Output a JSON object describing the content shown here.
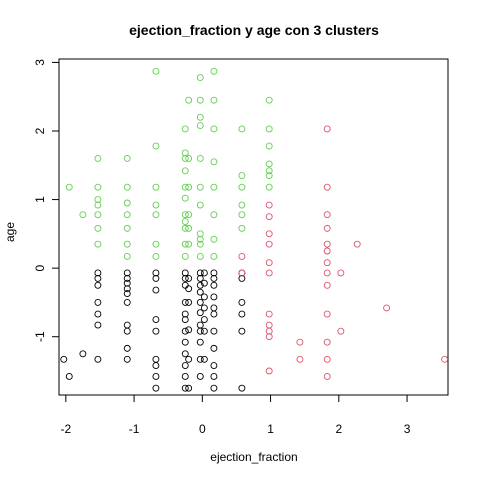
{
  "chart_data": {
    "type": "scatter",
    "title": "ejection_fraction  y  age con  3  clusters",
    "xlabel": "ejection_fraction",
    "ylabel": "age",
    "xlim": [
      -2.1,
      3.6
    ],
    "ylim": [
      -1.85,
      3.05
    ],
    "xticks": [
      -2,
      -1,
      0,
      1,
      2,
      3
    ],
    "yticks": [
      -1,
      0,
      1,
      2,
      3
    ],
    "grid": false,
    "legend": "none",
    "series": [
      {
        "color": "#000000",
        "points": [
          [
            -2.03,
            -1.33
          ],
          [
            -1.95,
            -1.58
          ],
          [
            -1.75,
            -1.25
          ],
          [
            -1.53,
            -0.07
          ],
          [
            -1.53,
            -0.15
          ],
          [
            -1.53,
            -0.25
          ],
          [
            -1.53,
            -0.5
          ],
          [
            -1.53,
            -0.67
          ],
          [
            -1.53,
            -0.83
          ],
          [
            -1.53,
            -1.33
          ],
          [
            -1.1,
            -0.07
          ],
          [
            -1.1,
            -0.15
          ],
          [
            -1.1,
            -0.22
          ],
          [
            -1.1,
            -0.3
          ],
          [
            -1.1,
            -0.37
          ],
          [
            -1.1,
            -0.5
          ],
          [
            -1.1,
            -0.83
          ],
          [
            -1.1,
            -0.92
          ],
          [
            -1.1,
            -1.17
          ],
          [
            -1.1,
            -1.33
          ],
          [
            -0.68,
            -0.07
          ],
          [
            -0.68,
            -0.15
          ],
          [
            -0.68,
            -0.32
          ],
          [
            -0.68,
            -0.75
          ],
          [
            -0.68,
            -0.92
          ],
          [
            -0.68,
            -1.33
          ],
          [
            -0.68,
            -1.42
          ],
          [
            -0.68,
            -1.58
          ],
          [
            -0.68,
            -1.75
          ],
          [
            -0.25,
            -0.07
          ],
          [
            -0.25,
            -0.15
          ],
          [
            -0.25,
            -0.25
          ],
          [
            -0.25,
            -0.5
          ],
          [
            -0.25,
            -0.67
          ],
          [
            -0.25,
            -0.75
          ],
          [
            -0.25,
            -0.92
          ],
          [
            -0.25,
            -1.08
          ],
          [
            -0.25,
            -1.25
          ],
          [
            -0.25,
            -1.42
          ],
          [
            -0.25,
            -1.58
          ],
          [
            -0.25,
            -1.75
          ],
          [
            -0.2,
            -0.15
          ],
          [
            -0.2,
            -0.3
          ],
          [
            -0.2,
            -0.5
          ],
          [
            -0.2,
            -0.9
          ],
          [
            -0.2,
            -1.33
          ],
          [
            -0.2,
            -1.75
          ],
          [
            -0.03,
            -0.07
          ],
          [
            -0.03,
            -0.15
          ],
          [
            -0.03,
            -0.25
          ],
          [
            -0.03,
            -0.35
          ],
          [
            -0.03,
            -0.5
          ],
          [
            -0.03,
            -0.65
          ],
          [
            -0.03,
            -0.83
          ],
          [
            -0.03,
            -0.92
          ],
          [
            -0.03,
            -1.08
          ],
          [
            -0.03,
            -1.33
          ],
          [
            -0.03,
            -1.58
          ],
          [
            0.03,
            -0.07
          ],
          [
            0.03,
            -0.22
          ],
          [
            0.03,
            -0.42
          ],
          [
            0.03,
            -0.58
          ],
          [
            0.03,
            -0.75
          ],
          [
            0.03,
            -0.92
          ],
          [
            0.03,
            -1.33
          ],
          [
            0.17,
            -0.07
          ],
          [
            0.17,
            -0.15
          ],
          [
            0.17,
            -0.25
          ],
          [
            0.17,
            -0.42
          ],
          [
            0.17,
            -0.58
          ],
          [
            0.17,
            -0.67
          ],
          [
            0.17,
            -0.92
          ],
          [
            0.17,
            -1.17
          ],
          [
            0.17,
            -1.42
          ],
          [
            0.17,
            -1.58
          ],
          [
            0.17,
            -1.75
          ],
          [
            0.58,
            -0.07
          ],
          [
            0.58,
            -0.15
          ],
          [
            0.58,
            -0.5
          ],
          [
            0.58,
            -0.67
          ],
          [
            0.58,
            -0.92
          ],
          [
            0.58,
            -1.75
          ]
        ]
      },
      {
        "color": "#DF536B",
        "points": [
          [
            0.58,
            0.17
          ],
          [
            0.58,
            -0.07
          ],
          [
            0.98,
            0.92
          ],
          [
            0.98,
            0.75
          ],
          [
            0.98,
            0.5
          ],
          [
            0.98,
            0.35
          ],
          [
            0.98,
            0.08
          ],
          [
            0.98,
            -0.07
          ],
          [
            0.98,
            -0.67
          ],
          [
            0.98,
            -0.83
          ],
          [
            0.98,
            -0.92
          ],
          [
            0.98,
            -1.0
          ],
          [
            0.98,
            -1.5
          ],
          [
            1.43,
            -1.08
          ],
          [
            1.43,
            -1.33
          ],
          [
            1.83,
            2.03
          ],
          [
            1.83,
            1.18
          ],
          [
            1.83,
            0.78
          ],
          [
            1.83,
            0.58
          ],
          [
            1.83,
            0.35
          ],
          [
            1.83,
            0.25
          ],
          [
            1.83,
            0.08
          ],
          [
            1.83,
            -0.07
          ],
          [
            1.83,
            -0.25
          ],
          [
            1.83,
            -0.67
          ],
          [
            1.83,
            -1.08
          ],
          [
            1.83,
            -1.33
          ],
          [
            1.83,
            -1.58
          ],
          [
            2.03,
            -0.07
          ],
          [
            2.03,
            -0.92
          ],
          [
            2.27,
            0.35
          ],
          [
            2.7,
            -0.58
          ],
          [
            3.55,
            -1.33
          ]
        ]
      },
      {
        "color": "#61D04F",
        "points": [
          [
            -1.95,
            1.18
          ],
          [
            -1.75,
            0.78
          ],
          [
            -1.53,
            1.6
          ],
          [
            -1.53,
            1.18
          ],
          [
            -1.53,
            1.0
          ],
          [
            -1.53,
            0.92
          ],
          [
            -1.53,
            0.78
          ],
          [
            -1.53,
            0.58
          ],
          [
            -1.53,
            0.35
          ],
          [
            -1.1,
            1.6
          ],
          [
            -1.1,
            1.18
          ],
          [
            -1.1,
            0.95
          ],
          [
            -1.1,
            0.78
          ],
          [
            -1.1,
            0.58
          ],
          [
            -1.1,
            0.35
          ],
          [
            -1.1,
            0.17
          ],
          [
            -0.68,
            2.87
          ],
          [
            -0.68,
            1.78
          ],
          [
            -0.68,
            1.18
          ],
          [
            -0.68,
            0.92
          ],
          [
            -0.68,
            0.78
          ],
          [
            -0.68,
            0.35
          ],
          [
            -0.68,
            0.17
          ],
          [
            -0.25,
            2.03
          ],
          [
            -0.25,
            1.68
          ],
          [
            -0.25,
            1.6
          ],
          [
            -0.25,
            1.42
          ],
          [
            -0.25,
            1.18
          ],
          [
            -0.25,
            1.02
          ],
          [
            -0.25,
            0.78
          ],
          [
            -0.25,
            0.68
          ],
          [
            -0.25,
            0.58
          ],
          [
            -0.25,
            0.35
          ],
          [
            -0.25,
            0.17
          ],
          [
            -0.2,
            2.45
          ],
          [
            -0.2,
            1.6
          ],
          [
            -0.2,
            1.18
          ],
          [
            -0.2,
            0.78
          ],
          [
            -0.2,
            0.58
          ],
          [
            -0.2,
            0.35
          ],
          [
            -0.03,
            2.78
          ],
          [
            -0.03,
            2.45
          ],
          [
            -0.03,
            2.2
          ],
          [
            -0.03,
            2.08
          ],
          [
            -0.03,
            1.6
          ],
          [
            -0.03,
            1.18
          ],
          [
            -0.03,
            0.92
          ],
          [
            -0.03,
            0.5
          ],
          [
            -0.03,
            0.42
          ],
          [
            -0.03,
            0.35
          ],
          [
            -0.03,
            0.17
          ],
          [
            0.17,
            2.87
          ],
          [
            0.17,
            2.45
          ],
          [
            0.17,
            2.03
          ],
          [
            0.17,
            1.55
          ],
          [
            0.17,
            1.18
          ],
          [
            0.17,
            0.78
          ],
          [
            0.17,
            0.42
          ],
          [
            0.17,
            0.17
          ],
          [
            0.58,
            2.03
          ],
          [
            0.58,
            1.35
          ],
          [
            0.58,
            1.18
          ],
          [
            0.58,
            0.92
          ],
          [
            0.58,
            0.78
          ],
          [
            0.58,
            0.58
          ],
          [
            0.98,
            2.45
          ],
          [
            0.98,
            2.03
          ],
          [
            0.98,
            1.78
          ],
          [
            0.98,
            1.52
          ],
          [
            0.98,
            1.42
          ],
          [
            0.98,
            1.35
          ],
          [
            0.98,
            1.18
          ]
        ]
      }
    ]
  }
}
